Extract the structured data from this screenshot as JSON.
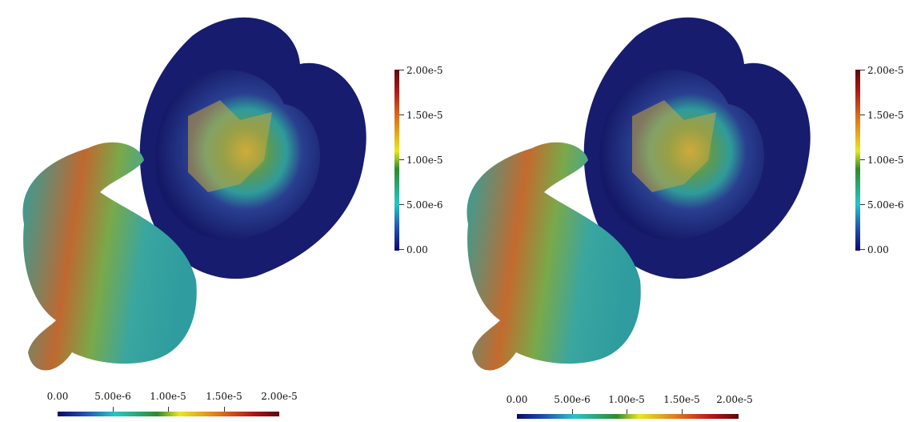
{
  "colormap": [
    "#0a0a6e",
    "#1f4fb0",
    "#27c6c6",
    "#2e8b2e",
    "#e8e820",
    "#e07a1a",
    "#b01818",
    "#5a0a0a"
  ],
  "panels": [
    {
      "vertical_colorbar": {
        "ticks": [
          "2.00e-5",
          "1.50e-5",
          "1.00e-5",
          "5.00e-6",
          "0.00"
        ]
      },
      "horizontal_colorbar": {
        "ticks": [
          "0.00",
          "5.00e-6",
          "1.00e-5",
          "1.50e-5",
          "2.00e-5"
        ]
      }
    },
    {
      "vertical_colorbar": {
        "ticks": [
          "2.00e-5",
          "1.50e-5",
          "1.00e-5",
          "5.00e-6",
          "0.00"
        ]
      },
      "horizontal_colorbar": {
        "ticks": [
          "0.00",
          "5.00e-6",
          "1.00e-5",
          "1.50e-5",
          "2.00e-5"
        ]
      }
    }
  ]
}
